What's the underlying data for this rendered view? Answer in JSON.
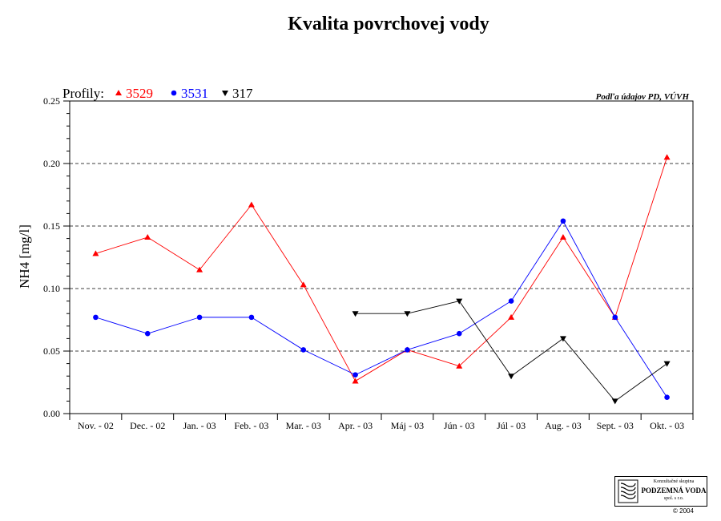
{
  "chart_data": {
    "type": "line",
    "title": "Kvalita povrchovej vody",
    "source": "Podľa údajov PD, VÚVH",
    "ylabel": "NH4 [mg/l]",
    "xlabel": "",
    "ylim": [
      0,
      0.25
    ],
    "yticks": [
      "0.00",
      "0.05",
      "0.10",
      "0.15",
      "0.20",
      "0.25"
    ],
    "grid": "horizontal-dashed",
    "legend_prefix": "Profily:",
    "legend_position": "top-left",
    "categories": [
      "Nov. - 02",
      "Dec. - 02",
      "Jan. - 03",
      "Feb. - 03",
      "Mar. - 03",
      "Apr. - 03",
      "Máj - 03",
      "Jún - 03",
      "Júl - 03",
      "Aug. - 03",
      "Sept. - 03",
      "Okt. - 03"
    ],
    "series": [
      {
        "name": "3529",
        "color": "#ff0000",
        "marker": "triangle-up",
        "values": [
          0.128,
          0.141,
          0.115,
          0.167,
          0.103,
          0.026,
          0.051,
          0.038,
          0.077,
          0.141,
          0.077,
          0.205
        ]
      },
      {
        "name": "3531",
        "color": "#0000ff",
        "marker": "circle",
        "values": [
          0.077,
          0.064,
          0.077,
          0.077,
          0.051,
          0.031,
          0.051,
          0.064,
          0.09,
          0.154,
          0.077,
          0.013
        ]
      },
      {
        "name": "317",
        "color": "#000000",
        "marker": "triangle-down",
        "values": [
          null,
          null,
          null,
          null,
          null,
          0.08,
          0.08,
          0.09,
          0.03,
          0.06,
          0.01,
          0.04
        ]
      }
    ]
  },
  "logo": {
    "line1": "Konzultačné skupina",
    "line2": "PODZEMNÁ VODA",
    "line3": "spol. s r.o.",
    "copyright": "© 2004"
  }
}
